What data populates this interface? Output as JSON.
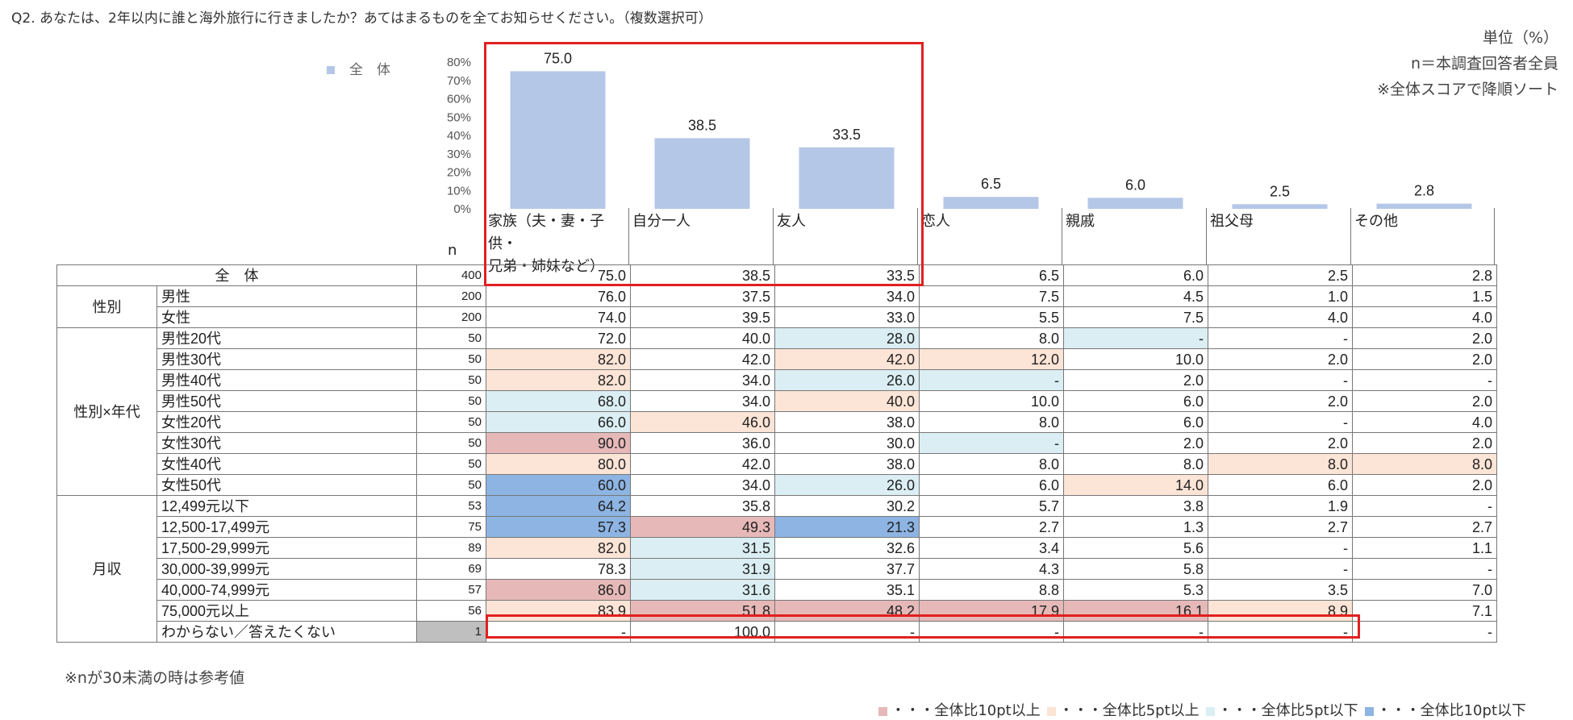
{
  "question": "Q2. あなたは、2年以内に誰と海外旅行に行きましたか？あてはまるものを全てお知らせください。（複数選択可）",
  "notes_right": [
    "単位（%）",
    "n＝本調査回答者全員",
    "※全体スコアで降順ソート"
  ],
  "legend_label": "全　体",
  "n_label": "n",
  "footnote": "※nが30未満の時は参考値",
  "keys": [
    {
      "label": "・・・全体比10pt以上",
      "color": "#e6b9b8"
    },
    {
      "label": "・・・全体比5pt以上",
      "color": "#fce4d6"
    },
    {
      "label": "・・・全体比5pt以下",
      "color": "#daeef3"
    },
    {
      "label": "・・・全体比10pt以下",
      "color": "#8db4e2"
    }
  ],
  "colors": {
    "bar": "#b4c7e7",
    "highlight_box": "#e02020"
  },
  "chart_data": {
    "type": "bar",
    "categories": [
      "家族（夫・妻・子供・兄弟・姉妹など）",
      "自分一人",
      "友人",
      "恋人",
      "親戚",
      "祖父母",
      "その他"
    ],
    "category_lines": [
      [
        "家族（夫・妻・子供・",
        "兄弟・姉妹など）"
      ],
      [
        "自分一人"
      ],
      [
        "友人"
      ],
      [
        "恋人"
      ],
      [
        "親戚"
      ],
      [
        "祖父母"
      ],
      [
        "その他"
      ]
    ],
    "series": [
      {
        "name": "全　体",
        "values": [
          75.0,
          38.5,
          33.5,
          6.5,
          6.0,
          2.5,
          2.8
        ]
      }
    ],
    "value_labels": [
      "75.0",
      "38.5",
      "33.5",
      "6.5",
      "6.0",
      "2.5",
      "2.8"
    ],
    "yticks": [
      "0%",
      "10%",
      "20%",
      "30%",
      "40%",
      "50%",
      "60%",
      "70%",
      "80%"
    ],
    "ylim": [
      0,
      80
    ]
  },
  "table": {
    "total": {
      "label": "全　体",
      "n": "400",
      "values": [
        "75.0",
        "38.5",
        "33.5",
        "6.5",
        "6.0",
        "2.5",
        "2.8"
      ]
    },
    "groups": [
      {
        "label": "性別",
        "rows": [
          {
            "label": "男性",
            "n": "200",
            "values": [
              "76.0",
              "37.5",
              "34.0",
              "7.5",
              "4.5",
              "1.0",
              "1.5"
            ],
            "marks": [
              "",
              "",
              "",
              "",
              "",
              "",
              ""
            ]
          },
          {
            "label": "女性",
            "n": "200",
            "values": [
              "74.0",
              "39.5",
              "33.0",
              "5.5",
              "7.5",
              "4.0",
              "4.0"
            ],
            "marks": [
              "",
              "",
              "",
              "",
              "",
              "",
              ""
            ]
          }
        ]
      },
      {
        "label": "性別×年代",
        "rows": [
          {
            "label": "男性20代",
            "n": "50",
            "values": [
              "72.0",
              "40.0",
              "28.0",
              "8.0",
              "-",
              "-",
              "2.0"
            ],
            "marks": [
              "",
              "",
              "lo5",
              "",
              "lo5",
              "",
              ""
            ]
          },
          {
            "label": "男性30代",
            "n": "50",
            "values": [
              "82.0",
              "42.0",
              "42.0",
              "12.0",
              "10.0",
              "2.0",
              "2.0"
            ],
            "marks": [
              "hi5",
              "",
              "hi5",
              "hi5",
              "",
              "",
              ""
            ]
          },
          {
            "label": "男性40代",
            "n": "50",
            "values": [
              "82.0",
              "34.0",
              "26.0",
              "-",
              "2.0",
              "-",
              "-"
            ],
            "marks": [
              "hi5",
              "",
              "lo5",
              "lo5",
              "",
              "",
              ""
            ]
          },
          {
            "label": "男性50代",
            "n": "50",
            "values": [
              "68.0",
              "34.0",
              "40.0",
              "10.0",
              "6.0",
              "2.0",
              "2.0"
            ],
            "marks": [
              "lo5",
              "",
              "hi5",
              "",
              "",
              "",
              ""
            ]
          },
          {
            "label": "女性20代",
            "n": "50",
            "values": [
              "66.0",
              "46.0",
              "38.0",
              "8.0",
              "6.0",
              "-",
              "4.0"
            ],
            "marks": [
              "lo5",
              "hi5",
              "",
              "",
              "",
              "",
              ""
            ]
          },
          {
            "label": "女性30代",
            "n": "50",
            "values": [
              "90.0",
              "36.0",
              "30.0",
              "-",
              "2.0",
              "2.0",
              "2.0"
            ],
            "marks": [
              "hi10",
              "",
              "",
              "lo5",
              "",
              "",
              ""
            ]
          },
          {
            "label": "女性40代",
            "n": "50",
            "values": [
              "80.0",
              "42.0",
              "38.0",
              "8.0",
              "8.0",
              "8.0",
              "8.0"
            ],
            "marks": [
              "hi5",
              "",
              "",
              "",
              "",
              "hi5",
              "hi5"
            ]
          },
          {
            "label": "女性50代",
            "n": "50",
            "values": [
              "60.0",
              "34.0",
              "26.0",
              "6.0",
              "14.0",
              "6.0",
              "2.0"
            ],
            "marks": [
              "lo10",
              "",
              "lo5",
              "",
              "hi5",
              "",
              ""
            ]
          }
        ]
      },
      {
        "label": "月収",
        "rows": [
          {
            "label": "12,499元以下",
            "n": "53",
            "values": [
              "64.2",
              "35.8",
              "30.2",
              "5.7",
              "3.8",
              "1.9",
              "-"
            ],
            "marks": [
              "lo10",
              "",
              "",
              "",
              "",
              "",
              ""
            ]
          },
          {
            "label": "12,500-17,499元",
            "n": "75",
            "values": [
              "57.3",
              "49.3",
              "21.3",
              "2.7",
              "1.3",
              "2.7",
              "2.7"
            ],
            "marks": [
              "lo10",
              "hi10",
              "lo10",
              "",
              "",
              "",
              ""
            ]
          },
          {
            "label": "17,500-29,999元",
            "n": "89",
            "values": [
              "82.0",
              "31.5",
              "32.6",
              "3.4",
              "5.6",
              "-",
              "1.1"
            ],
            "marks": [
              "hi5",
              "lo5",
              "",
              "",
              "",
              "",
              ""
            ]
          },
          {
            "label": "30,000-39,999元",
            "n": "69",
            "values": [
              "78.3",
              "31.9",
              "37.7",
              "4.3",
              "5.8",
              "-",
              "-"
            ],
            "marks": [
              "",
              "lo5",
              "",
              "",
              "",
              "",
              ""
            ]
          },
          {
            "label": "40,000-74,999元",
            "n": "57",
            "values": [
              "86.0",
              "31.6",
              "35.1",
              "8.8",
              "5.3",
              "3.5",
              "7.0"
            ],
            "marks": [
              "hi10",
              "lo5",
              "",
              "",
              "",
              "",
              ""
            ]
          },
          {
            "label": "75,000元以上",
            "n": "56",
            "values": [
              "83.9",
              "51.8",
              "48.2",
              "17.9",
              "16.1",
              "8.9",
              "7.1"
            ],
            "marks": [
              "hi5",
              "hi10",
              "hi10",
              "hi10",
              "hi10",
              "hi5",
              ""
            ]
          },
          {
            "label": "わからない／答えたくない",
            "n": "1",
            "n_ref": true,
            "values": [
              "-",
              "100.0",
              "-",
              "-",
              "-",
              "-",
              "-"
            ],
            "marks": [
              "",
              "",
              "",
              "",
              "",
              "",
              ""
            ]
          }
        ]
      }
    ]
  }
}
